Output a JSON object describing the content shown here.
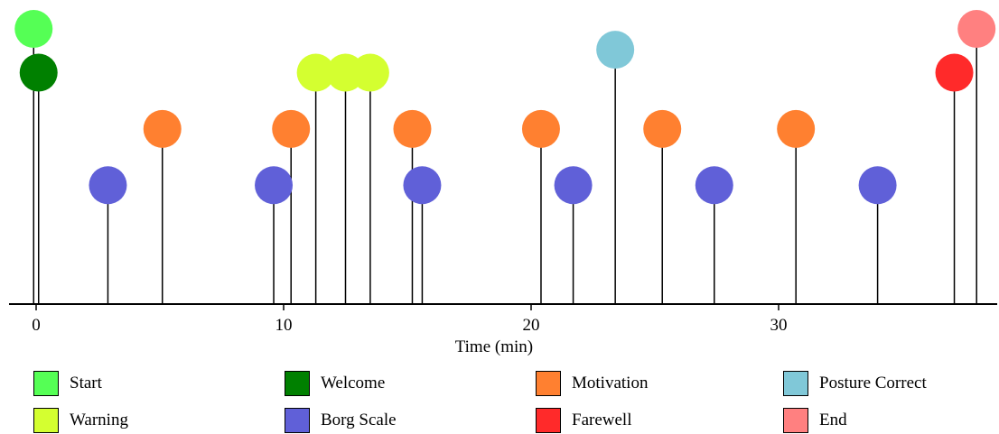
{
  "chart_data": {
    "type": "scatter",
    "subtype": "event-lollipop-timeline",
    "xlabel": "Time (min)",
    "ylabel": "",
    "xlim": [
      -1,
      38.5
    ],
    "xticks": [
      0,
      10,
      20,
      30
    ],
    "grid": false,
    "legend_placement": "bottom",
    "series": [
      {
        "name": "Start",
        "color": "#55ff55",
        "level": 1.0,
        "x": [
          -0.1
        ]
      },
      {
        "name": "Welcome",
        "color": "#008000",
        "level": 0.79,
        "x": [
          0.1
        ]
      },
      {
        "name": "Motivation",
        "color": "#ff8030",
        "level": 0.52,
        "x": [
          5.1,
          10.3,
          15.2,
          20.4,
          25.3,
          30.7
        ]
      },
      {
        "name": "Posture Correct",
        "color": "#80c8d8",
        "level": 0.9,
        "x": [
          23.4
        ]
      },
      {
        "name": "Warning",
        "color": "#d4ff30",
        "level": 0.79,
        "x": [
          11.3,
          12.5,
          13.5
        ]
      },
      {
        "name": "Borg Scale",
        "color": "#6060d8",
        "level": 0.25,
        "x": [
          2.9,
          9.6,
          15.6,
          21.7,
          27.4,
          34.0
        ]
      },
      {
        "name": "Farewell",
        "color": "#ff2a2a",
        "level": 0.79,
        "x": [
          37.1
        ]
      },
      {
        "name": "End",
        "color": "#ff8080",
        "level": 1.0,
        "x": [
          38.0
        ]
      }
    ]
  }
}
